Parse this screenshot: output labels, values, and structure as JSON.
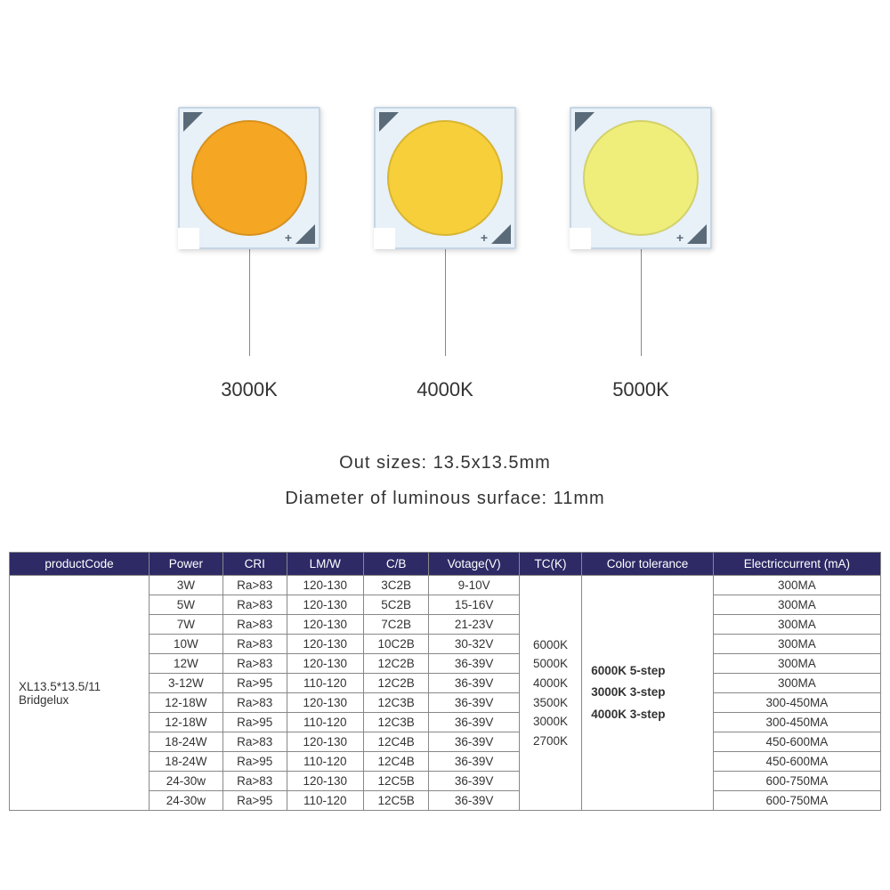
{
  "chips": [
    {
      "label": "3000K",
      "circle_color": "#f5a623"
    },
    {
      "label": "4000K",
      "circle_color": "#f6cf3a"
    },
    {
      "label": "5000K",
      "circle_color": "#f0ee7a"
    }
  ],
  "spec_line1": "Out sizes: 13.5x13.5mm",
  "spec_line2": "Diameter of luminous surface: 11mm",
  "table": {
    "headers": [
      "productCode",
      "Power",
      "CRI",
      "LM/W",
      "C/B",
      "Votage(V)",
      "TC(K)",
      "Color tolerance",
      "Electriccurrent (mA)"
    ],
    "product_code": "XL13.5*13.5/11 Bridgelux",
    "tck_list": [
      "6000K",
      "5000K",
      "4000K",
      "3500K",
      "3000K",
      "2700K"
    ],
    "tolerance_list": [
      "6000K 5-step",
      "3000K 3-step",
      "4000K 3-step"
    ],
    "rows": [
      {
        "power": "3W",
        "cri": "Ra>83",
        "lmw": "120-130",
        "cb": "3C2B",
        "voltage": "9-10V",
        "current": "300MA"
      },
      {
        "power": "5W",
        "cri": "Ra>83",
        "lmw": "120-130",
        "cb": "5C2B",
        "voltage": "15-16V",
        "current": "300MA"
      },
      {
        "power": "7W",
        "cri": "Ra>83",
        "lmw": "120-130",
        "cb": "7C2B",
        "voltage": "21-23V",
        "current": "300MA"
      },
      {
        "power": "10W",
        "cri": "Ra>83",
        "lmw": "120-130",
        "cb": "10C2B",
        "voltage": "30-32V",
        "current": "300MA"
      },
      {
        "power": "12W",
        "cri": "Ra>83",
        "lmw": "120-130",
        "cb": "12C2B",
        "voltage": "36-39V",
        "current": "300MA"
      },
      {
        "power": "3-12W",
        "cri": "Ra>95",
        "lmw": "110-120",
        "cb": "12C2B",
        "voltage": "36-39V",
        "current": "300MA"
      },
      {
        "power": "12-18W",
        "cri": "Ra>83",
        "lmw": "120-130",
        "cb": "12C3B",
        "voltage": "36-39V",
        "current": "300-450MA"
      },
      {
        "power": "12-18W",
        "cri": "Ra>95",
        "lmw": "110-120",
        "cb": "12C3B",
        "voltage": "36-39V",
        "current": "300-450MA"
      },
      {
        "power": "18-24W",
        "cri": "Ra>83",
        "lmw": "120-130",
        "cb": "12C4B",
        "voltage": "36-39V",
        "current": "450-600MA"
      },
      {
        "power": "18-24W",
        "cri": "Ra>95",
        "lmw": "110-120",
        "cb": "12C4B",
        "voltage": "36-39V",
        "current": "450-600MA"
      },
      {
        "power": "24-30w",
        "cri": "Ra>83",
        "lmw": "120-130",
        "cb": "12C5B",
        "voltage": "36-39V",
        "current": "600-750MA"
      },
      {
        "power": "24-30w",
        "cri": "Ra>95",
        "lmw": "110-120",
        "cb": "12C5B",
        "voltage": "36-39V",
        "current": "600-750MA"
      }
    ]
  },
  "styling": {
    "header_bg": "#2d2a66",
    "header_text": "#ffffff",
    "border_color": "#888888",
    "chip_bg": "#e8f0f8",
    "chip_border": "#c5d5e5",
    "triangle_color": "#5a6a78",
    "background": "#ffffff",
    "label_fontsize": 22,
    "spec_fontsize": 20,
    "table_fontsize": 13.5
  }
}
